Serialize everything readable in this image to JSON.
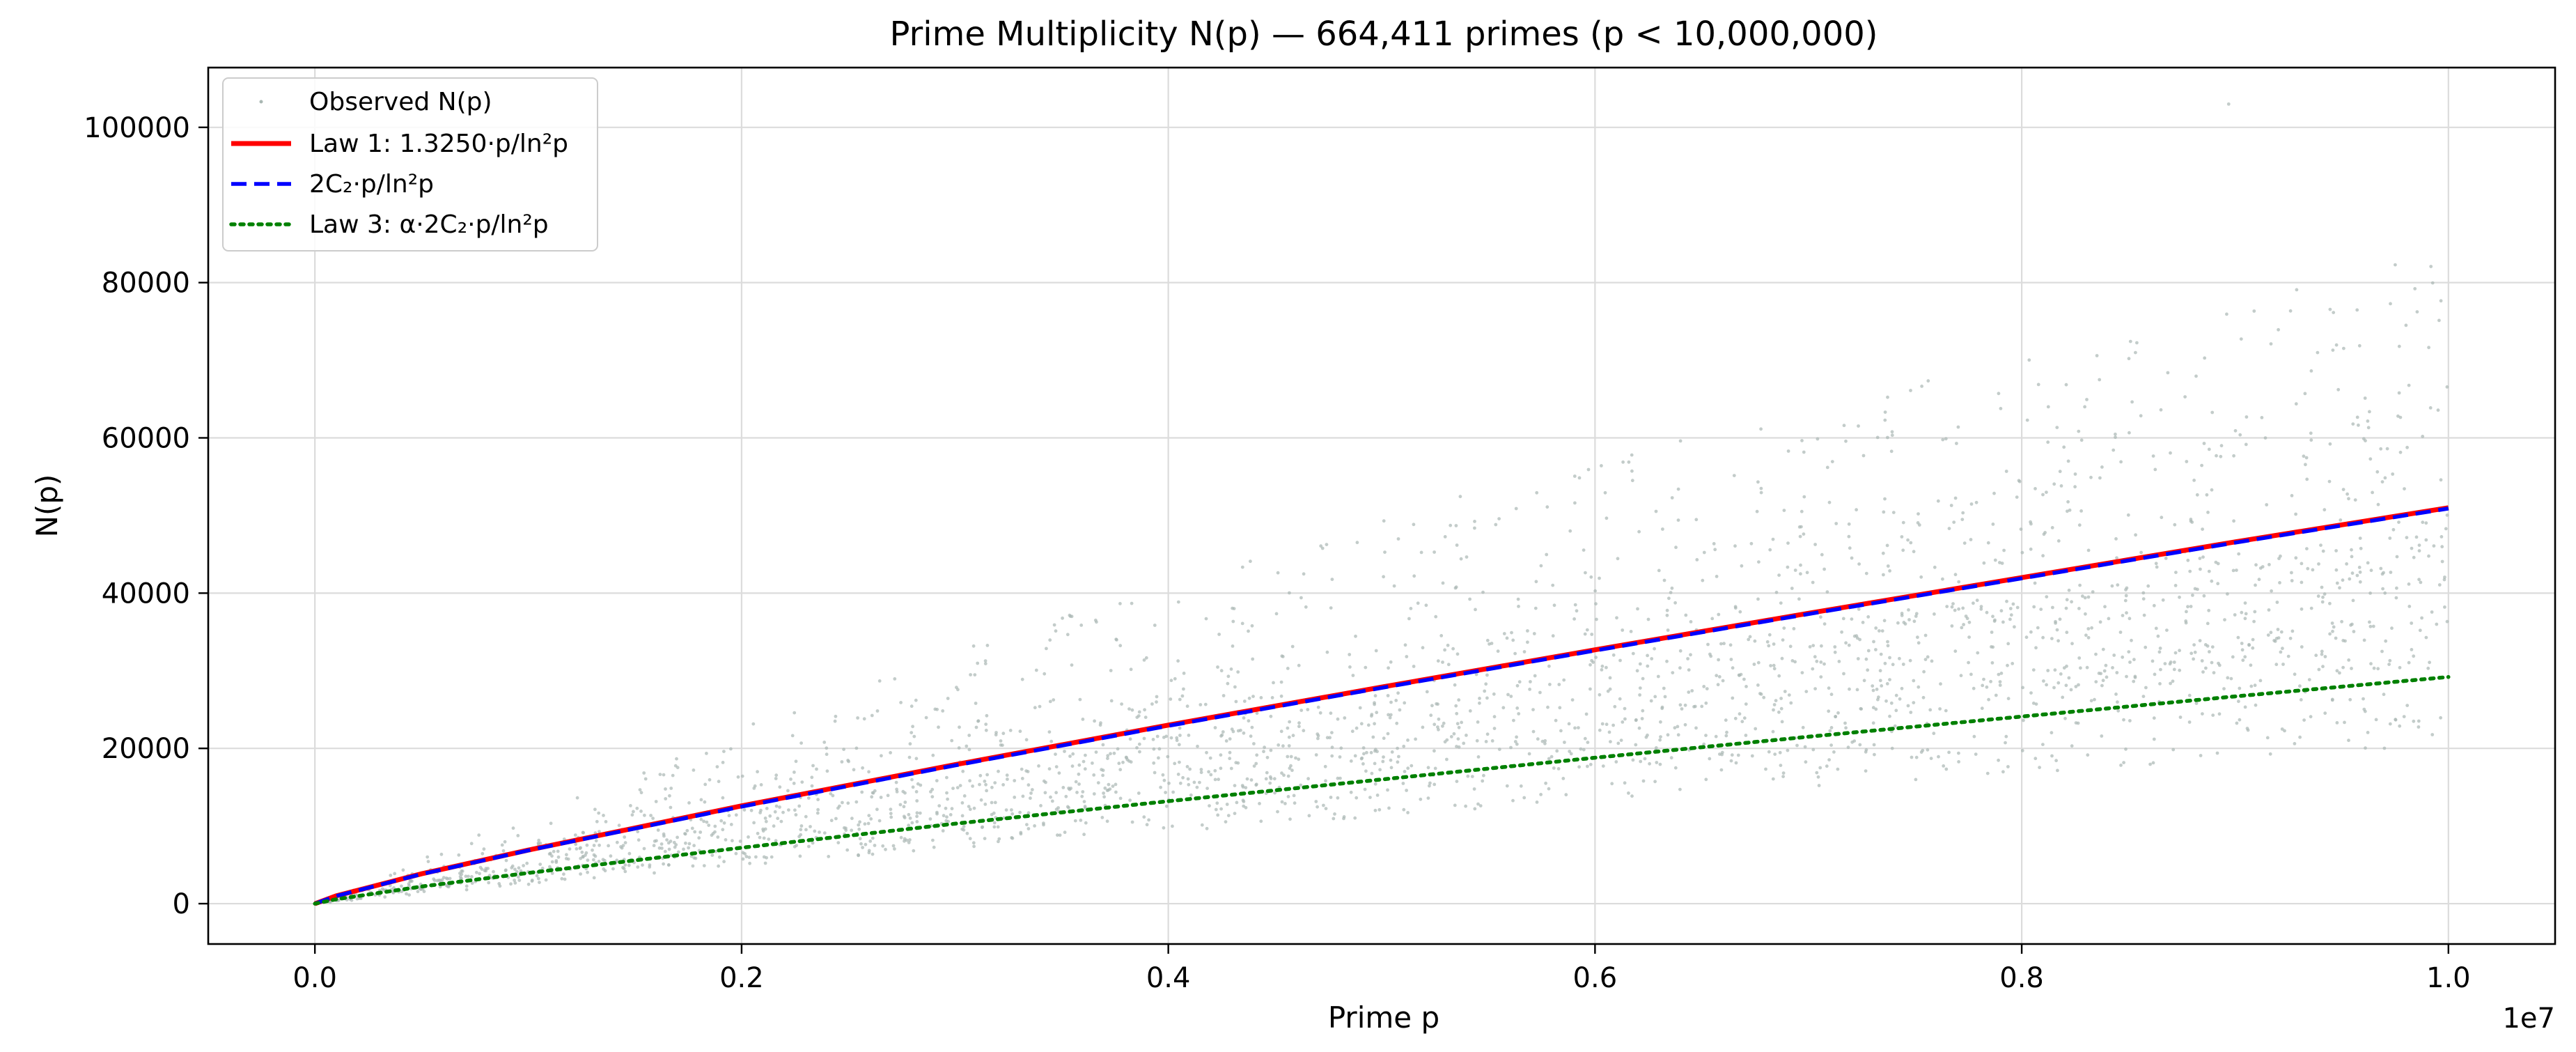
{
  "chart_data": {
    "type": "scatter",
    "title": "Prime Multiplicity N(p) — 664,411 primes (p < 10,000,000)",
    "xlabel": "Prime p",
    "ylabel": "N(p)",
    "x_offset_text": "1e7",
    "xlim": [
      -500000,
      10500000
    ],
    "ylim": [
      -5200,
      107700
    ],
    "xticks": [
      0,
      2000000,
      4000000,
      6000000,
      8000000,
      10000000
    ],
    "xtick_labels": [
      "0.0",
      "0.2",
      "0.4",
      "0.6",
      "0.8",
      "1.0"
    ],
    "yticks": [
      0,
      20000,
      40000,
      60000,
      80000,
      100000
    ],
    "ytick_labels": [
      "0",
      "20000",
      "40000",
      "60000",
      "80000",
      "100000"
    ],
    "grid": true,
    "legend_position": "top-left",
    "scatter": {
      "name": "Observed N(p)",
      "color": "#a9b7b3",
      "bands": [
        {
          "label": "upper-band",
          "x": [
            0,
            2000000,
            4000000,
            6000000,
            8000000,
            10000000
          ],
          "y": [
            0,
            16000,
            29000,
            40000,
            49000,
            59000
          ]
        },
        {
          "label": "middle-band",
          "x": [
            0,
            2000000,
            4000000,
            6000000,
            8000000,
            10000000
          ],
          "y": [
            0,
            13000,
            23000,
            32500,
            42000,
            51000
          ]
        },
        {
          "label": "lower-band",
          "x": [
            0,
            2000000,
            4000000,
            6000000,
            8000000,
            10000000
          ],
          "y": [
            0,
            9000,
            17000,
            24500,
            31500,
            39000
          ]
        },
        {
          "label": "bottom-band",
          "x": [
            0,
            2000000,
            4000000,
            6000000,
            8000000,
            10000000
          ],
          "y": [
            0,
            7000,
            13000,
            19000,
            24000,
            29000
          ]
        }
      ],
      "max_observed": {
        "x": 8970000,
        "y": 103000
      }
    },
    "series": [
      {
        "name": "Law 1: 1.3250·p/ln²p",
        "color": "#ff0000",
        "style": "solid",
        "x": [
          0,
          100000,
          500000,
          1000000,
          2000000,
          3000000,
          4000000,
          5000000,
          6000000,
          7000000,
          8000000,
          9000000,
          10000000
        ],
        "y": [
          0,
          1000,
          3850,
          6900,
          12600,
          17900,
          23000,
          27900,
          32700,
          37400,
          42000,
          46600,
          51000
        ]
      },
      {
        "name": "2C₂·p/ln²p",
        "color": "#0000ff",
        "style": "dashed",
        "x": [
          0,
          100000,
          500000,
          1000000,
          2000000,
          3000000,
          4000000,
          5000000,
          6000000,
          7000000,
          8000000,
          9000000,
          10000000
        ],
        "y": [
          0,
          980,
          3800,
          6850,
          12500,
          17800,
          22900,
          27800,
          32600,
          37300,
          41900,
          46500,
          50900
        ]
      },
      {
        "name": "Law 3: α·2C₂·p/ln²p",
        "color": "#008000",
        "style": "dotted",
        "x": [
          0,
          100000,
          500000,
          1000000,
          2000000,
          3000000,
          4000000,
          5000000,
          6000000,
          7000000,
          8000000,
          9000000,
          10000000
        ],
        "y": [
          0,
          560,
          2200,
          3950,
          7200,
          10300,
          13200,
          16000,
          18800,
          21500,
          24100,
          26700,
          29200
        ]
      }
    ]
  }
}
